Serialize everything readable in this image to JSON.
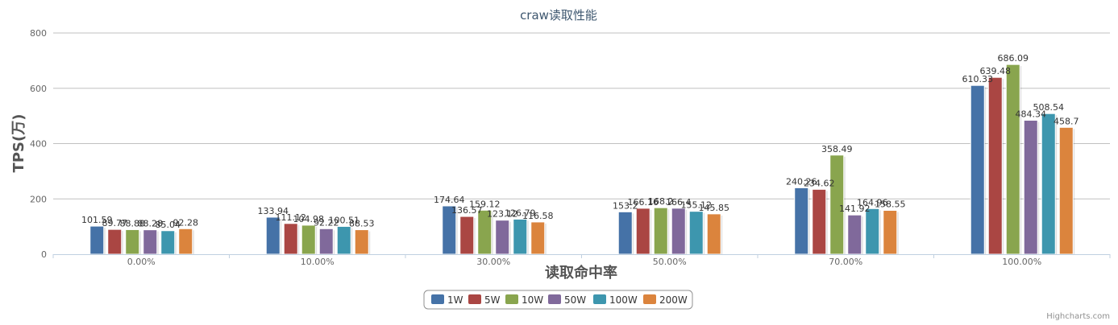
{
  "chart_data": {
    "type": "bar",
    "title": "craw读取性能",
    "xlabel": "读取命中率",
    "ylabel": "TPS(万)",
    "categories": [
      "0.00%",
      "10.00%",
      "30.00%",
      "50.00%",
      "70.00%",
      "100.00%"
    ],
    "ylim": [
      0,
      800
    ],
    "yticks": [
      0,
      200,
      400,
      600,
      800
    ],
    "grid": true,
    "legend_position": "bottom-center",
    "series": [
      {
        "name": "1W",
        "color": "#4572a7",
        "values": [
          101.59,
          133.94,
          174.64,
          153.2,
          240.26,
          610.33
        ],
        "labels": [
          "101.59",
          "133.94",
          "174.64",
          "153.2",
          "240.26",
          "610.33"
        ]
      },
      {
        "name": "5W",
        "color": "#aa4643",
        "values": [
          89.77,
          111.12,
          136.57,
          166.16,
          234.62,
          639.48
        ],
        "labels": [
          "89.77",
          "111.12",
          "136.57",
          "166.16",
          "234.62",
          "639.48"
        ]
      },
      {
        "name": "10W",
        "color": "#89a54e",
        "values": [
          88.88,
          104.98,
          159.12,
          168.2,
          358.49,
          686.09
        ],
        "labels": [
          "88.88",
          "104.98",
          "159.12",
          "168.2",
          "358.49",
          "686.09"
        ]
      },
      {
        "name": "50W",
        "color": "#80699b",
        "values": [
          88.28,
          92.22,
          123.12,
          166.4,
          141.92,
          484.34
        ],
        "labels": [
          "88.28",
          "92.22",
          "123.12",
          "166.4",
          "141.92",
          "484.34"
        ]
      },
      {
        "name": "100W",
        "color": "#3d96ae",
        "values": [
          85.04,
          100.51,
          126.79,
          155.12,
          164.96,
          508.54
        ],
        "labels": [
          "85.04",
          "100.51",
          "126.79",
          "155.12",
          "164.96",
          "508.54"
        ]
      },
      {
        "name": "200W",
        "color": "#db843d",
        "values": [
          92.28,
          88.53,
          116.58,
          145.85,
          158.55,
          458.7
        ],
        "labels": [
          "92.28",
          "88.53",
          "116.58",
          "145.85",
          "158.55",
          "458.7"
        ]
      }
    ]
  },
  "credit": "Highcharts.com"
}
